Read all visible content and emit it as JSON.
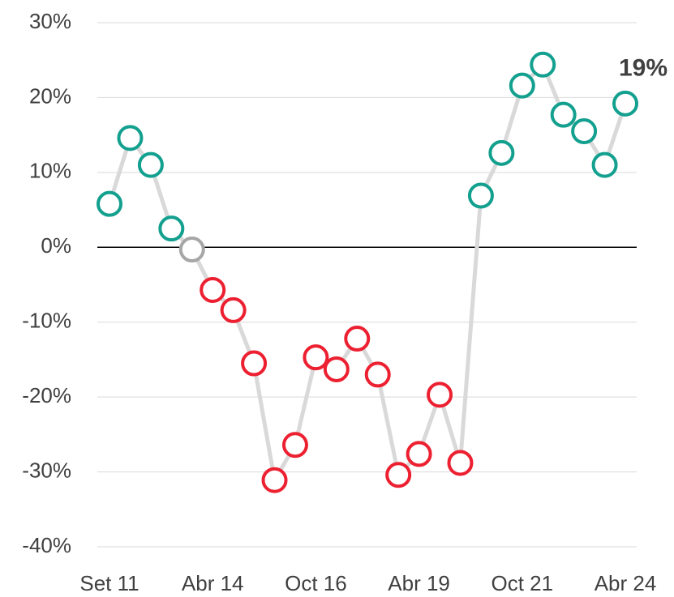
{
  "chart_data": {
    "type": "line",
    "categories": [
      "Set 11",
      null,
      null,
      null,
      null,
      "Abr 14",
      null,
      null,
      null,
      null,
      "Oct 16",
      null,
      null,
      null,
      null,
      "Abr 19",
      null,
      null,
      null,
      null,
      "Oct 21",
      null,
      null,
      null,
      null,
      "Abr 24"
    ],
    "series": [
      {
        "color": "#d9d9d9",
        "values": [
          5.8,
          14.6,
          11.0,
          2.5,
          -0.3,
          -5.7,
          -8.4,
          -15.5,
          -31.1,
          -26.4,
          -14.7,
          -16.3,
          -12.2,
          -17.0,
          -30.4,
          -27.6,
          -19.7,
          -28.8,
          6.9,
          12.6,
          21.6,
          24.4,
          17.7,
          15.5,
          11.0,
          19.2
        ],
        "point_colors": [
          "#13a08f",
          "#13a08f",
          "#13a08f",
          "#13a08f",
          "#a6a6a6",
          "#ec2030",
          "#ec2030",
          "#ec2030",
          "#ec2030",
          "#ec2030",
          "#ec2030",
          "#ec2030",
          "#ec2030",
          "#ec2030",
          "#ec2030",
          "#ec2030",
          "#ec2030",
          "#ec2030",
          "#13a08f",
          "#13a08f",
          "#13a08f",
          "#13a08f",
          "#13a08f",
          "#13a08f",
          "#13a08f",
          "#13a08f"
        ],
        "value_labels": [
          null,
          null,
          null,
          null,
          null,
          null,
          null,
          null,
          null,
          null,
          null,
          null,
          null,
          null,
          null,
          null,
          null,
          null,
          null,
          null,
          null,
          null,
          null,
          null,
          null,
          "19%"
        ]
      }
    ],
    "ylim": [
      -40,
      30
    ],
    "yticks": [
      {
        "value": -40,
        "label": "-40%"
      },
      {
        "value": -30,
        "label": "-30%"
      },
      {
        "value": -20,
        "label": "-20%"
      },
      {
        "value": -10,
        "label": "-10%"
      },
      {
        "value": 0,
        "label": "0%"
      },
      {
        "value": 10,
        "label": "10%"
      },
      {
        "value": 20,
        "label": "20%"
      },
      {
        "value": 30,
        "label": "30%"
      }
    ],
    "grid": true
  }
}
